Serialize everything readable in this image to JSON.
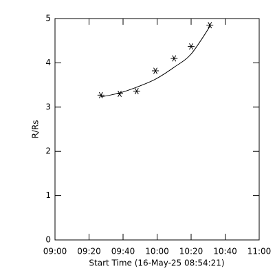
{
  "chart_data": {
    "type": "scatter",
    "x_label": "Start Time (16-May-25 08:54:21)",
    "y_label": "R/Rs",
    "x": [
      "09:27",
      "09:38",
      "09:48",
      "09:59",
      "10:10",
      "10:20",
      "10:31"
    ],
    "series": [
      {
        "color": "#000000",
        "marker": "star",
        "values": [
          3.27,
          3.3,
          3.36,
          3.82,
          4.1,
          4.37,
          4.85
        ]
      },
      {
        "color": "#000000",
        "marker": "line",
        "values": [
          3.23,
          3.32,
          3.45,
          3.63,
          3.9,
          4.2,
          4.82
        ]
      }
    ],
    "xlim": [
      "09:00",
      "11:00"
    ],
    "xticks": [
      "09:00",
      "09:20",
      "09:40",
      "10:00",
      "10:20",
      "10:40",
      "11:00"
    ],
    "ylim": [
      0,
      5
    ],
    "yticks": [
      0,
      1,
      2,
      3,
      4,
      5
    ]
  }
}
